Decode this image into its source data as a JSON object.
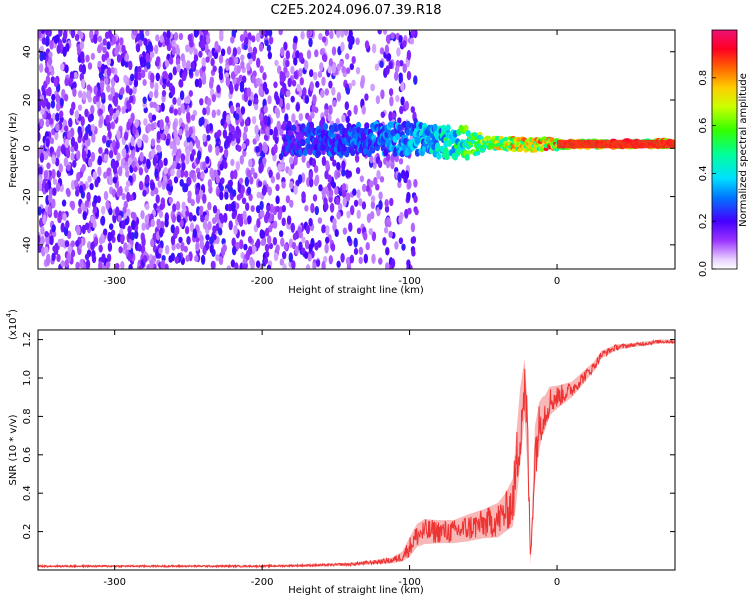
{
  "title": "C2E5.2024.096.07.39.R18",
  "chart_data": [
    {
      "type": "heatmap",
      "xlabel": "Height of straight line (km)",
      "ylabel": "Frequency (Hz)",
      "xlim": [
        -352,
        80
      ],
      "ylim": [
        -50,
        49
      ],
      "xticks": [
        -300,
        -200,
        -100,
        0
      ],
      "yticks": [
        -40,
        -20,
        0,
        20,
        40
      ],
      "colorbar": {
        "label": "Normalized spectral amplitude",
        "range": [
          0,
          1
        ],
        "ticks": [
          0.0,
          0.2,
          0.4,
          0.6,
          0.8
        ]
      },
      "noise_region_x": [
        -352,
        -110
      ],
      "signal_band": [
        {
          "x": -185,
          "f": 4,
          "amp": 0.25
        },
        {
          "x": -150,
          "f": 3,
          "amp": 0.3
        },
        {
          "x": -110,
          "f": 4,
          "amp": 0.35
        },
        {
          "x": -80,
          "f": 3,
          "amp": 0.45
        },
        {
          "x": -60,
          "f": 2,
          "amp": 0.6
        },
        {
          "x": -40,
          "f": 2,
          "amp": 0.75
        },
        {
          "x": -20,
          "f": 1.5,
          "amp": 0.8
        },
        {
          "x": 0,
          "f": 1.5,
          "amp": 0.85
        },
        {
          "x": 80,
          "f": 2,
          "amp": 0.95
        }
      ]
    },
    {
      "type": "line",
      "xlabel": "Height of straight line (km)",
      "ylabel": "SNR (10 * v/v)",
      "y_multiplier": "(x10",
      "y_multiplier_exp": "4",
      "y_multiplier_close": ")",
      "xlim": [
        -352,
        80
      ],
      "ylim": [
        0,
        1.25
      ],
      "xticks": [
        -300,
        -200,
        -100,
        0
      ],
      "yticks": [
        0.2,
        0.4,
        0.6,
        0.8,
        1.0,
        1.2
      ],
      "color": "#ee3333",
      "series": [
        {
          "x": [
            -352,
            -300,
            -250,
            -200,
            -160,
            -140,
            -125,
            -112,
            -105,
            -100,
            -95,
            -90,
            -80,
            -70,
            -60,
            -50,
            -40,
            -35,
            -30,
            -28,
            -25,
            -22,
            -20,
            -18,
            -15,
            -12,
            -10,
            -8,
            -5,
            0,
            5,
            10,
            15,
            20,
            25,
            30,
            40,
            50,
            60,
            70,
            80
          ],
          "y": [
            0.02,
            0.02,
            0.02,
            0.02,
            0.025,
            0.03,
            0.04,
            0.05,
            0.07,
            0.12,
            0.18,
            0.2,
            0.2,
            0.2,
            0.22,
            0.24,
            0.26,
            0.3,
            0.35,
            0.5,
            0.75,
            0.95,
            0.7,
            0.05,
            0.6,
            0.75,
            0.8,
            0.82,
            0.88,
            0.9,
            0.92,
            0.94,
            0.98,
            1.02,
            1.06,
            1.12,
            1.16,
            1.17,
            1.18,
            1.19,
            1.19
          ],
          "spread": [
            0.01,
            0.01,
            0.01,
            0.01,
            0.012,
            0.015,
            0.02,
            0.03,
            0.05,
            0.1,
            0.12,
            0.13,
            0.12,
            0.12,
            0.14,
            0.15,
            0.18,
            0.2,
            0.25,
            0.35,
            0.4,
            0.3,
            0.35,
            0.05,
            0.3,
            0.25,
            0.2,
            0.18,
            0.15,
            0.12,
            0.1,
            0.08,
            0.07,
            0.06,
            0.05,
            0.04,
            0.03,
            0.02,
            0.02,
            0.02,
            0.02
          ]
        }
      ]
    }
  ]
}
